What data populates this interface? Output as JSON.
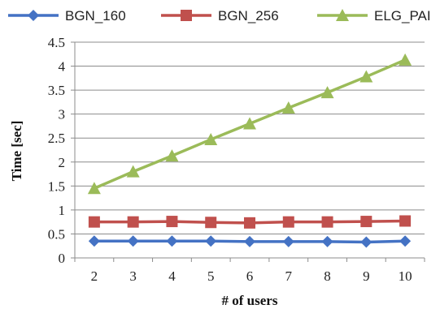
{
  "chart_data": {
    "type": "line",
    "x": [
      2,
      3,
      4,
      5,
      6,
      7,
      8,
      9,
      10
    ],
    "xlabel": "# of users",
    "ylabel": "Time [sec]",
    "ylim": [
      0,
      4.5
    ],
    "yticks": [
      "0",
      "0.5",
      "1",
      "1.5",
      "2",
      "2.5",
      "3",
      "3.5",
      "4",
      "4.5"
    ],
    "grid": "horizontal",
    "legend_position": "top",
    "series": [
      {
        "name": "BGN_160",
        "color": "#4472C4",
        "marker": "diamond",
        "values": [
          0.35,
          0.35,
          0.35,
          0.35,
          0.34,
          0.34,
          0.34,
          0.33,
          0.35
        ]
      },
      {
        "name": "BGN_256",
        "color": "#C0504D",
        "marker": "square",
        "values": [
          0.75,
          0.75,
          0.76,
          0.74,
          0.73,
          0.75,
          0.75,
          0.76,
          0.77
        ]
      },
      {
        "name": "ELG_PAI",
        "color": "#9BBB59",
        "marker": "triangle",
        "values": [
          1.45,
          1.8,
          2.13,
          2.47,
          2.8,
          3.13,
          3.45,
          3.78,
          4.13
        ]
      }
    ]
  }
}
